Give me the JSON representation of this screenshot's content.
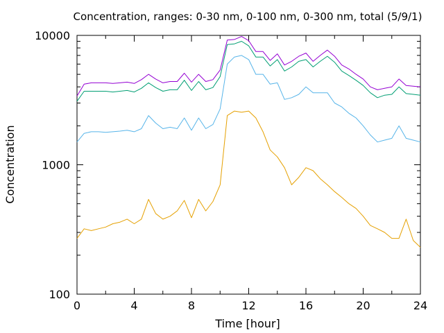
{
  "chart_data": {
    "type": "line",
    "title": "Concentration, ranges: 0-30 nm, 0-100 nm, 0-300 nm, total (5/9/1)",
    "xlabel": "Time [hour]",
    "ylabel": "Concentration",
    "xlim": [
      0,
      24
    ],
    "ylim": [
      100,
      10000
    ],
    "yscale": "log",
    "grid": false,
    "legend": "none",
    "x_ticks": [
      0,
      4,
      8,
      12,
      16,
      20,
      24
    ],
    "y_ticks": [
      100,
      1000,
      10000
    ],
    "x": [
      0,
      0.5,
      1,
      1.5,
      2,
      2.5,
      3,
      3.5,
      4,
      4.5,
      5,
      5.5,
      6,
      6.5,
      7,
      7.5,
      8,
      8.5,
      9,
      9.5,
      10,
      10.5,
      11,
      11.5,
      12,
      12.5,
      13,
      13.5,
      14,
      14.5,
      15,
      15.5,
      16,
      16.5,
      17,
      17.5,
      18,
      18.5,
      19,
      19.5,
      20,
      20.5,
      21,
      21.5,
      22,
      22.5,
      23,
      23.5,
      24
    ],
    "series": [
      {
        "color": "#e5a000",
        "values": [
          270,
          320,
          310,
          320,
          330,
          350,
          360,
          380,
          350,
          380,
          540,
          420,
          380,
          400,
          440,
          530,
          390,
          540,
          440,
          520,
          700,
          2400,
          2600,
          2550,
          2600,
          2300,
          1800,
          1300,
          1150,
          950,
          700,
          800,
          950,
          900,
          780,
          700,
          620,
          560,
          500,
          460,
          400,
          340,
          320,
          300,
          270,
          270,
          380,
          260,
          230
        ]
      },
      {
        "color": "#56b4e9",
        "values": [
          1500,
          1750,
          1800,
          1800,
          1780,
          1800,
          1820,
          1850,
          1800,
          1900,
          2400,
          2100,
          1900,
          1950,
          1900,
          2300,
          1850,
          2300,
          1900,
          2050,
          2700,
          6000,
          6800,
          7000,
          6500,
          5000,
          5000,
          4200,
          4300,
          3200,
          3300,
          3500,
          4000,
          3600,
          3600,
          3600,
          3000,
          2800,
          2500,
          2300,
          2000,
          1700,
          1500,
          1550,
          1600,
          2000,
          1600,
          1550,
          1500
        ]
      },
      {
        "color": "#009e73",
        "values": [
          3100,
          3700,
          3700,
          3700,
          3700,
          3650,
          3700,
          3750,
          3650,
          3900,
          4300,
          3950,
          3700,
          3800,
          3800,
          4500,
          3750,
          4400,
          3800,
          3950,
          4800,
          8500,
          8600,
          9000,
          8300,
          6800,
          6800,
          5800,
          6500,
          5300,
          5700,
          6300,
          6500,
          5700,
          6300,
          6900,
          6200,
          5300,
          4900,
          4500,
          4100,
          3600,
          3300,
          3450,
          3500,
          4000,
          3550,
          3500,
          3450
        ]
      },
      {
        "color": "#9400d3",
        "values": [
          3400,
          4200,
          4300,
          4300,
          4300,
          4250,
          4300,
          4350,
          4250,
          4550,
          5000,
          4600,
          4300,
          4400,
          4400,
          5100,
          4350,
          5000,
          4400,
          4550,
          5400,
          9200,
          9300,
          9800,
          9100,
          7500,
          7500,
          6400,
          7200,
          5900,
          6300,
          6900,
          7300,
          6300,
          7000,
          7700,
          6900,
          5900,
          5500,
          5000,
          4600,
          4000,
          3800,
          3900,
          4000,
          4600,
          4100,
          4050,
          4000
        ]
      }
    ]
  }
}
